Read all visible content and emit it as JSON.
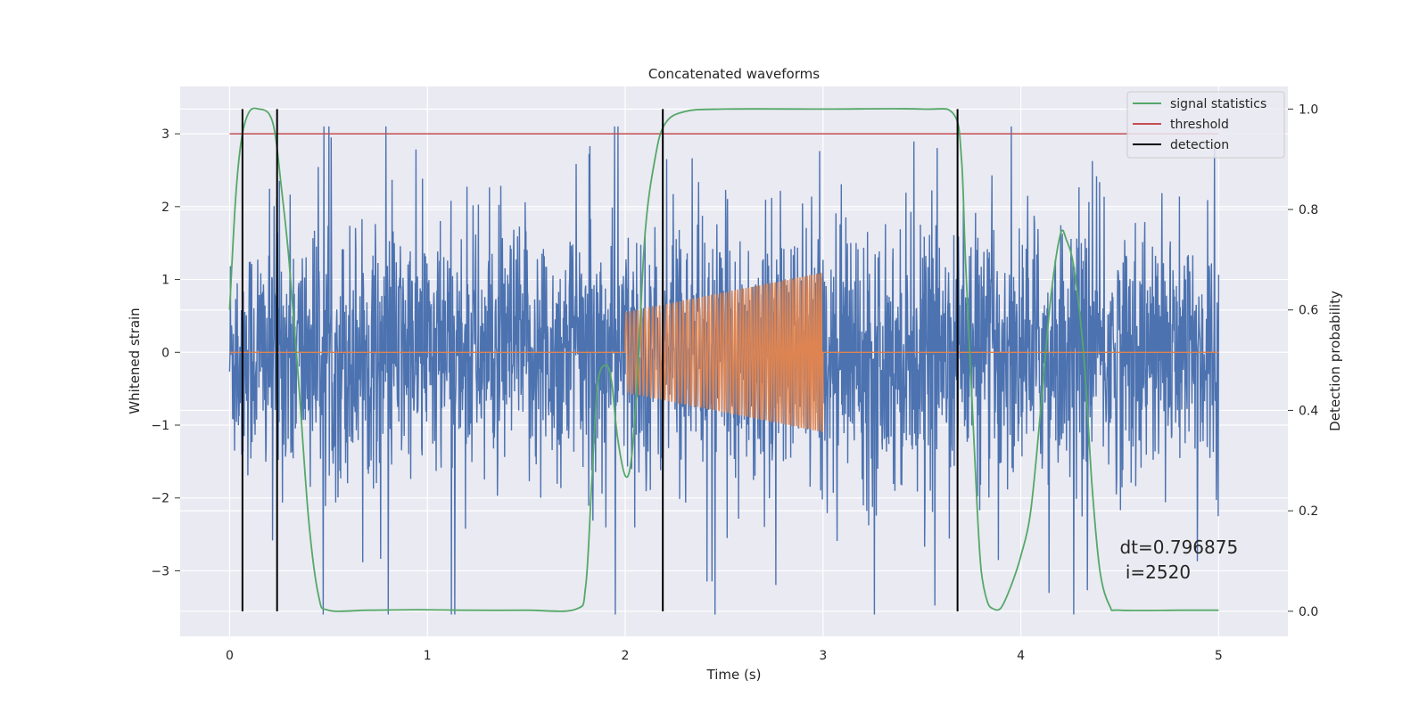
{
  "chart_data": {
    "type": "line",
    "title": "Concatenated waveforms",
    "xlabel": "Time (s)",
    "ylabel_left": "Whitened strain",
    "ylabel_right": "Detection probability",
    "xlim": [
      -0.25,
      5.35
    ],
    "ylim_left": [
      -3.9,
      3.65
    ],
    "ylim_right": [
      -0.05,
      1.045
    ],
    "x_ticks": [
      "0",
      "1",
      "2",
      "3",
      "4",
      "5"
    ],
    "y_ticks_left": [
      "3",
      "2",
      "1",
      "0",
      "−1",
      "−2",
      "−3"
    ],
    "y_ticks_right": [
      "1.0",
      "0.8",
      "0.6",
      "0.4",
      "0.2",
      "0.0"
    ],
    "grid": true,
    "legend_position": "top-right",
    "legend": [
      {
        "label": "signal statistics",
        "color": "#55a868"
      },
      {
        "label": "threshold",
        "color": "#c44e52"
      },
      {
        "label": "detection",
        "color": "#000000"
      }
    ],
    "series": [
      {
        "kind": "whitened_noise",
        "color": "#4c72b0",
        "x_range": [
          0,
          5
        ],
        "typical_band": [
          -0.8,
          0.8
        ],
        "peak_range": [
          -3.6,
          3.1
        ]
      },
      {
        "kind": "injected_chirp",
        "color": "#dd8452",
        "x_range": [
          2,
          3
        ],
        "amplitude_start": 0.55,
        "amplitude_end": 1.1
      },
      {
        "name": "threshold",
        "color": "#c44e52",
        "axis": "left",
        "x": [
          0,
          5
        ],
        "y": [
          3,
          3
        ]
      },
      {
        "name": "signal statistics",
        "color": "#55a868",
        "axis": "right",
        "x": [
          0,
          0.03,
          0.06,
          0.1,
          0.15,
          0.2,
          0.23,
          0.26,
          0.3,
          0.35,
          0.4,
          0.45,
          0.5,
          0.7,
          0.95,
          1.2,
          1.5,
          1.75,
          1.8,
          1.83,
          1.86,
          1.9,
          1.93,
          1.96,
          2.0,
          2.03,
          2.06,
          2.1,
          2.15,
          2.2,
          2.3,
          2.5,
          3.0,
          3.5,
          3.66,
          3.7,
          3.72,
          3.75,
          3.78,
          3.8,
          3.83,
          3.86,
          3.9,
          3.95,
          4.0,
          4.05,
          4.1,
          4.15,
          4.2,
          4.23,
          4.27,
          4.32,
          4.36,
          4.4,
          4.45,
          4.5,
          4.8,
          5.0
        ],
        "y": [
          0.6,
          0.82,
          0.94,
          0.995,
          1.0,
          0.99,
          0.95,
          0.85,
          0.7,
          0.45,
          0.18,
          0.03,
          0.002,
          0.002,
          0.003,
          0.002,
          0.002,
          0.004,
          0.05,
          0.25,
          0.45,
          0.49,
          0.46,
          0.35,
          0.27,
          0.3,
          0.45,
          0.75,
          0.9,
          0.97,
          0.995,
          1.0,
          1.0,
          1.0,
          0.99,
          0.9,
          0.7,
          0.45,
          0.2,
          0.08,
          0.02,
          0.005,
          0.007,
          0.05,
          0.11,
          0.2,
          0.4,
          0.62,
          0.75,
          0.74,
          0.68,
          0.5,
          0.25,
          0.08,
          0.01,
          0.002,
          0.002,
          0.002
        ]
      },
      {
        "name": "detection",
        "color": "#000000",
        "kind": "vertical_lines",
        "x": [
          0.065,
          0.24,
          2.19,
          3.68
        ]
      }
    ],
    "annotation": {
      "line1": "dt=0.796875",
      "line2": " i=2520",
      "x": 4.5,
      "y_right": 0.115
    }
  }
}
